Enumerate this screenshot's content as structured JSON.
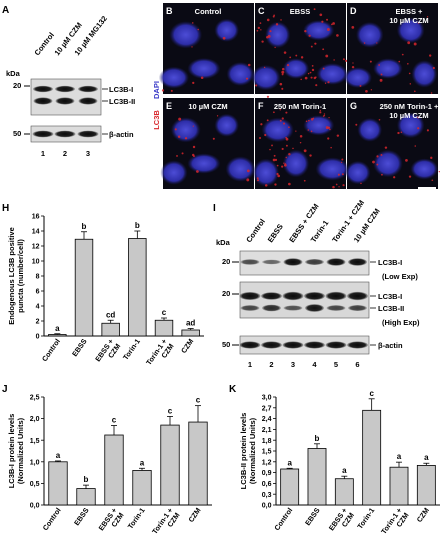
{
  "panels": {
    "A": {
      "letter": "A",
      "kda": "kDa",
      "lanes": [
        "Control",
        "10 µM CZM",
        "10 µM MG132"
      ],
      "mw_markers": [
        "20",
        "50"
      ],
      "band_labels": [
        "LC3B-I",
        "LC3B-II",
        "β-actin"
      ],
      "lane_numbers": [
        "1",
        "2",
        "3"
      ]
    },
    "micro": {
      "side_label_red": "LC3B",
      "side_label_blue": "DAPI",
      "tiles": [
        {
          "letter": "B",
          "label": "Control"
        },
        {
          "letter": "C",
          "label": "EBSS"
        },
        {
          "letter": "D",
          "label": "EBSS +",
          "label2": "10 µM CZM"
        },
        {
          "letter": "E",
          "label": "10 µM CZM"
        },
        {
          "letter": "F",
          "label": "250 nM Torin-1"
        },
        {
          "letter": "G",
          "label": "250 nM Torin-1 +",
          "label2": "10 µM CZM"
        }
      ]
    },
    "I": {
      "letter": "I",
      "kda": "kDa",
      "lanes": [
        "Control",
        "EBSS",
        "EBSS + CZM",
        "Torin-1",
        "Torin-1 + CZM",
        "10 µM CZM"
      ],
      "mw_markers": [
        "20",
        "20",
        "50"
      ],
      "band_labels": [
        "LC3B-I",
        "(Low Exp)",
        "LC3B-I",
        "LC3B-II",
        "(High Exp)",
        "β-actin"
      ],
      "lane_numbers": [
        "1",
        "2",
        "3",
        "4",
        "5",
        "6"
      ]
    }
  },
  "chart_data": [
    {
      "panel": "H",
      "type": "bar",
      "ylabel": "Endogenous LC3B positive puncta (number/cell)",
      "ylabel_lines": [
        "Endogenous LC3B positive",
        "puncta (number/cell)"
      ],
      "ylim": [
        0,
        16
      ],
      "yticks": [
        0,
        2,
        4,
        6,
        8,
        10,
        12,
        14,
        16
      ],
      "categories": [
        "Control",
        "EBSS",
        "EBSS + CZM",
        "Torin-1",
        "Torin-1 + CZM",
        "CZM"
      ],
      "values": [
        0.2,
        12.9,
        1.7,
        13.0,
        2.1,
        0.8
      ],
      "errors": [
        0.1,
        1.0,
        0.4,
        1.0,
        0.3,
        0.2
      ],
      "significance": [
        "a",
        "b",
        "cd",
        "b",
        "c",
        "ad"
      ]
    },
    {
      "panel": "J",
      "type": "bar",
      "ylabel": "LC3B-I protein levels (Normalized Units)",
      "ylabel_lines": [
        "LC3B-I protein levels",
        "(Normalized Units)"
      ],
      "ylim": [
        0,
        2.5
      ],
      "yticks": [
        "0,0",
        "0,5",
        "1,0",
        "1,5",
        "2,0",
        "2,5"
      ],
      "categories": [
        "Control",
        "EBSS",
        "EBSS + CZM",
        "Torin-1",
        "Torin-1 + CZM",
        "CZM"
      ],
      "values": [
        1.0,
        0.38,
        1.62,
        0.8,
        1.85,
        1.92
      ],
      "errors": [
        0.02,
        0.08,
        0.22,
        0.05,
        0.2,
        0.38
      ],
      "significance": [
        "a",
        "b",
        "c",
        "a",
        "c",
        "c"
      ]
    },
    {
      "panel": "K",
      "type": "bar",
      "ylabel": "LC3B-II protein levels (Normalized Units)",
      "ylabel_lines": [
        "LC3B-II protein levels",
        "(Normalized Units)"
      ],
      "ylim": [
        0,
        3
      ],
      "yticks": [
        "0,0",
        "0,3",
        "0,6",
        "0,9",
        "1,2",
        "1,5",
        "1,8",
        "2,1",
        "2,4",
        "2,7",
        "3,0"
      ],
      "categories": [
        "Control",
        "EBSS",
        "EBSS + CZM",
        "Torin-1",
        "Torin-1 + CZM",
        "CZM"
      ],
      "values": [
        1.0,
        1.57,
        0.73,
        2.63,
        1.05,
        1.1
      ],
      "errors": [
        0.02,
        0.13,
        0.07,
        0.32,
        0.14,
        0.06
      ],
      "significance": [
        "a",
        "b",
        "a",
        "c",
        "a",
        "a"
      ]
    }
  ],
  "colors": {
    "bar_fill": "#c8c8c8",
    "micro_bg": "#0a0a14",
    "nucleus": "#3b3bc8",
    "puncta": "#d8262b",
    "blot_bg": "#dcdcdc",
    "band": "#141414"
  }
}
